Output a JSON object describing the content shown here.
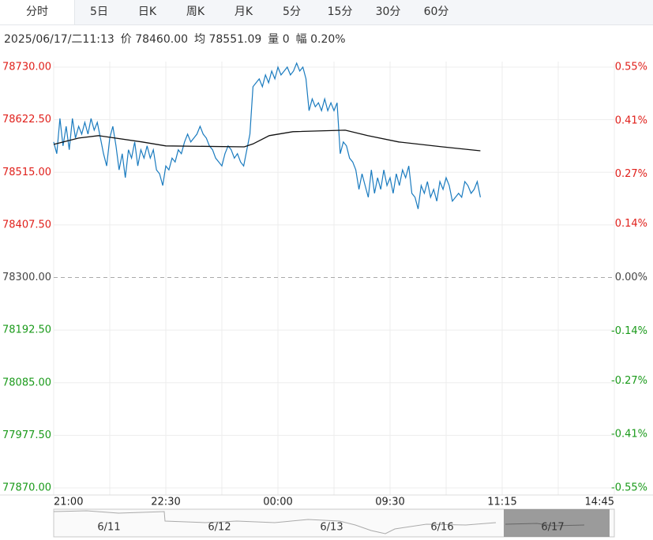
{
  "tabs": [
    "分时",
    "5日",
    "日K",
    "周K",
    "月K",
    "5分",
    "15分",
    "30分",
    "60分"
  ],
  "info": [
    "2025/06/17/二11:13",
    "价 78460.00",
    "均 78551.09",
    "量 0",
    "幅 0.20%"
  ],
  "navigator": {
    "dates": [
      "6/11",
      "6/12",
      "6/13",
      "6/16",
      "6/17"
    ]
  },
  "chart_data": {
    "type": "line",
    "up_color": "#e0201b",
    "down_color": "#1a9a1a",
    "flat_color": "#444444",
    "xlim": [
      0,
      450
    ],
    "xticks": [
      {
        "value": 0,
        "label": "21:00"
      },
      {
        "value": 90,
        "label": "22:30"
      },
      {
        "value": 180,
        "label": "00:00"
      },
      {
        "value": 270,
        "label": "09:30"
      },
      {
        "value": 360,
        "label": "11:15"
      },
      {
        "value": 450,
        "label": "14:45"
      }
    ],
    "ylim": [
      77870,
      78730
    ],
    "yticks": [
      {
        "value": 78730,
        "label": "78730.00"
      },
      {
        "value": 78622.5,
        "label": "78622.50"
      },
      {
        "value": 78515,
        "label": "78515.00"
      },
      {
        "value": 78407.5,
        "label": "78407.50"
      },
      {
        "value": 78300,
        "label": "78300.00"
      },
      {
        "value": 78192.5,
        "label": "78192.50"
      },
      {
        "value": 78085,
        "label": "78085.00"
      },
      {
        "value": 77977.5,
        "label": "77977.50"
      },
      {
        "value": 77870,
        "label": "77870.00"
      }
    ],
    "y2lim": [
      -0.55,
      0.55
    ],
    "y2ticks": [
      {
        "value": 0.55,
        "label": "0.55%"
      },
      {
        "value": 0.41,
        "label": "0.41%"
      },
      {
        "value": 0.27,
        "label": "0.27%"
      },
      {
        "value": 0.14,
        "label": "0.14%"
      },
      {
        "value": 0,
        "label": "0.00%"
      },
      {
        "value": -0.14,
        "label": "-0.14%"
      },
      {
        "value": -0.27,
        "label": "-0.27%"
      },
      {
        "value": -0.41,
        "label": "-0.41%"
      },
      {
        "value": -0.55,
        "label": "-0.55%"
      }
    ],
    "series": [
      {
        "color": "#1a7bbf",
        "x": [
          0,
          2.5,
          5,
          7.5,
          10,
          12.5,
          15,
          17.5,
          20,
          22.5,
          25,
          27.5,
          30,
          32.5,
          35,
          37.5,
          40,
          42.5,
          45,
          47.5,
          50,
          52.5,
          55,
          57.5,
          60,
          62.5,
          65,
          67.5,
          70,
          72.5,
          75,
          77.5,
          80,
          82.5,
          85,
          87.5,
          90,
          92.5,
          95,
          97.5,
          100,
          102.5,
          105,
          107.5,
          110,
          112.5,
          115,
          117.5,
          120,
          122.5,
          125,
          127.5,
          130,
          132.5,
          135,
          137.5,
          140,
          142.5,
          145,
          147.5,
          150,
          152.5,
          155,
          157.5,
          160,
          162.5,
          165,
          167.5,
          170,
          172.5,
          175,
          177.5,
          180,
          182.5,
          185,
          187.5,
          190,
          192.5,
          195,
          197.5,
          200,
          202.5,
          205,
          207.5,
          210,
          212.5,
          215,
          217.5,
          220,
          222.5,
          225,
          227.5,
          230,
          232.5,
          235,
          237.5,
          240,
          242.5,
          245,
          247.5,
          250,
          252.5,
          255,
          257.5,
          260,
          262.5,
          265,
          267.5,
          270,
          272.5,
          275,
          277.5,
          280,
          282.5,
          285,
          287.5,
          290,
          292.5,
          295,
          297.5,
          300,
          302.5,
          305,
          307.5,
          310,
          312.5,
          315,
          317.5,
          320,
          322.5,
          325,
          327.5,
          330,
          332.5,
          335,
          337.5,
          340,
          342.5
        ],
        "values": [
          78577,
          78553,
          78625,
          78569,
          78609,
          78561,
          78625,
          78585,
          78609,
          78593,
          78617,
          78593,
          78625,
          78601,
          78617,
          78585,
          78553,
          78528,
          78585,
          78609,
          78569,
          78520,
          78553,
          78504,
          78561,
          78544,
          78577,
          78528,
          78561,
          78544,
          78569,
          78544,
          78561,
          78520,
          78512,
          78488,
          78528,
          78520,
          78544,
          78536,
          78561,
          78553,
          78577,
          78593,
          78577,
          78585,
          78593,
          78609,
          78593,
          78585,
          78569,
          78561,
          78544,
          78536,
          78528,
          78553,
          78569,
          78561,
          78544,
          78553,
          78536,
          78528,
          78561,
          78593,
          78690,
          78698,
          78706,
          78690,
          78714,
          78698,
          78722,
          78706,
          78730,
          78714,
          78722,
          78730,
          78714,
          78722,
          78738,
          78722,
          78730,
          78706,
          78641,
          78665,
          78649,
          78657,
          78641,
          78665,
          78641,
          78657,
          78641,
          78657,
          78553,
          78577,
          78569,
          78544,
          78536,
          78520,
          78480,
          78512,
          78488,
          78464,
          78520,
          78472,
          78504,
          78480,
          78520,
          78488,
          78504,
          78472,
          78512,
          78488,
          78520,
          78504,
          78528,
          78472,
          78464,
          78440,
          78488,
          78472,
          78496,
          78464,
          78480,
          78456,
          78496,
          78480,
          78504,
          78488,
          78456,
          78464,
          78472,
          78464,
          78496,
          78488,
          78472,
          78480,
          78496,
          78464
        ]
      },
      {
        "color": "#111111",
        "x": [
          0,
          20,
          36,
          71,
          90,
          153,
          160,
          173,
          192,
          234,
          252,
          277,
          312,
          342.5
        ],
        "values": [
          78572,
          78585,
          78590,
          78577,
          78569,
          78567,
          78573,
          78590,
          78598,
          78601,
          78590,
          78577,
          78567,
          78559
        ]
      }
    ]
  }
}
